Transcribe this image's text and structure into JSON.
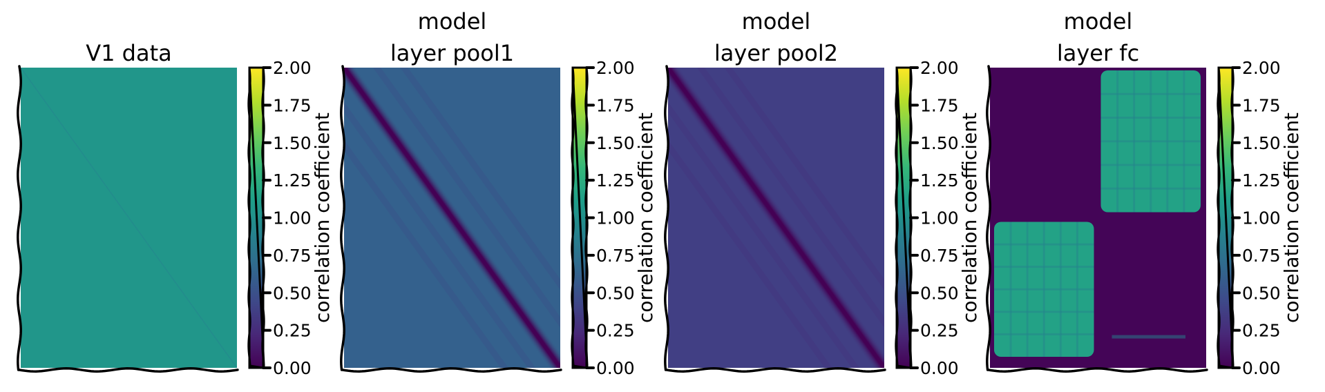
{
  "chart_data": [
    {
      "type": "heatmap",
      "title_lines": [
        "V1 data"
      ],
      "colorbar_label": "correlation coefficient",
      "colorbar_ticks": [
        "0.00",
        "0.25",
        "0.50",
        "0.75",
        "1.00",
        "1.25",
        "1.50",
        "1.75",
        "2.00"
      ],
      "zlim": [
        0,
        2
      ],
      "pattern": "uniform",
      "base_value": 1.05,
      "diagonal_value": 0.95
    },
    {
      "type": "heatmap",
      "title_lines": [
        "model",
        "layer pool1"
      ],
      "colorbar_label": "correlation coefficient",
      "colorbar_ticks": [
        "0.00",
        "0.25",
        "0.50",
        "0.75",
        "1.00",
        "1.25",
        "1.50",
        "1.75",
        "2.00"
      ],
      "zlim": [
        0,
        2
      ],
      "pattern": "diagonal",
      "base_value": 0.62,
      "diagonal_value": 0.0
    },
    {
      "type": "heatmap",
      "title_lines": [
        "model",
        "layer pool2"
      ],
      "colorbar_label": "correlation coefficient",
      "colorbar_ticks": [
        "0.00",
        "0.25",
        "0.50",
        "0.75",
        "1.00",
        "1.25",
        "1.50",
        "1.75",
        "2.00"
      ],
      "zlim": [
        0,
        2
      ],
      "pattern": "diagonal",
      "base_value": 0.38,
      "diagonal_value": 0.0
    },
    {
      "type": "heatmap",
      "title_lines": [
        "model",
        "layer fc"
      ],
      "colorbar_label": "correlation coefficient",
      "colorbar_ticks": [
        "0.00",
        "0.25",
        "0.50",
        "0.75",
        "1.00",
        "1.25",
        "1.50",
        "1.75",
        "2.00"
      ],
      "zlim": [
        0,
        2
      ],
      "pattern": "block",
      "diagonal_block_value": 0.02,
      "off_block_value": 1.15
    }
  ],
  "colors": {
    "viridis": [
      "#440154",
      "#482878",
      "#3e4989",
      "#31688e",
      "#26828e",
      "#1f9e89",
      "#35b779",
      "#6ece58",
      "#b5de2b",
      "#fde725"
    ]
  }
}
